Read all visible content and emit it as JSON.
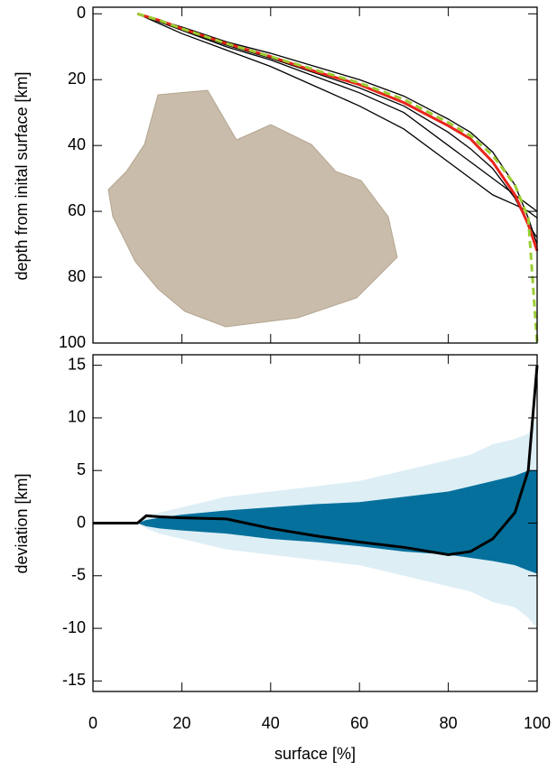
{
  "chart_data": [
    {
      "type": "line",
      "ylabel": "depth from inital surface [km]",
      "ylim": [
        -2,
        100
      ],
      "yticks": [
        0,
        20,
        40,
        60,
        80,
        100
      ],
      "xlim": [
        0,
        100
      ],
      "inverted_y": true,
      "x": [
        10,
        15,
        20,
        30,
        40,
        50,
        60,
        70,
        80,
        85,
        90,
        95,
        98,
        100
      ],
      "series": [
        {
          "color": "#000000",
          "values": [
            0,
            2.5,
            5,
            10,
            14,
            19,
            24,
            30,
            40,
            45,
            50,
            55,
            58,
            60
          ]
        },
        {
          "color": "#000000",
          "values": [
            0,
            3,
            6,
            11,
            16,
            22,
            28,
            35,
            45,
            50,
            55,
            58,
            60,
            62
          ]
        },
        {
          "color": "#000000",
          "values": [
            0,
            2,
            4,
            8.5,
            12,
            16,
            20,
            25,
            32,
            36,
            42,
            52,
            62,
            70
          ]
        },
        {
          "color": "#000000",
          "values": [
            0,
            2.2,
            4.8,
            9.5,
            13.5,
            18,
            22.5,
            28,
            36,
            41,
            47,
            56,
            64,
            68
          ]
        },
        {
          "color": "#e8241c",
          "values": [
            0,
            2,
            4.5,
            9,
            13,
            17.5,
            21.5,
            27,
            34,
            38,
            45,
            55,
            64,
            72
          ]
        },
        {
          "color": "#9acd32",
          "dashed": true,
          "values": [
            0,
            2,
            4.5,
            9,
            13,
            17,
            21,
            26,
            33,
            37,
            43,
            52,
            62,
            100
          ]
        }
      ]
    },
    {
      "type": "band",
      "ylabel": "deviation [km]",
      "xlabel": "surface [%]",
      "xlim": [
        0,
        100
      ],
      "xticks": [
        0,
        20,
        40,
        60,
        80,
        100
      ],
      "ylim": [
        -16,
        16
      ],
      "yticks": [
        15,
        10,
        5,
        0,
        -5,
        -10,
        -15
      ],
      "x": [
        0,
        10,
        12,
        15,
        20,
        30,
        40,
        50,
        60,
        70,
        80,
        85,
        90,
        95,
        98,
        100
      ],
      "bands": [
        {
          "color": "#ddeef5",
          "values": [
            0,
            0,
            0.5,
            1,
            1.5,
            2.5,
            3,
            3.5,
            4,
            5,
            6,
            6.5,
            7.5,
            8,
            8.5,
            10
          ],
          "lower": [
            0,
            0,
            -0.5,
            -1,
            -1.5,
            -2.5,
            -3,
            -3.5,
            -4,
            -5,
            -6,
            -6.5,
            -7.5,
            -8,
            -9,
            -10
          ]
        },
        {
          "color": "#05709c",
          "values": [
            0,
            0,
            0.3,
            0.5,
            0.8,
            1.2,
            1.5,
            1.8,
            2,
            2.5,
            3,
            3.5,
            4,
            4.5,
            5,
            5
          ],
          "lower": [
            0,
            0,
            -0.3,
            -0.5,
            -0.7,
            -1,
            -1.5,
            -1.8,
            -2.2,
            -2.7,
            -3,
            -3.3,
            -3.6,
            -4,
            -4.5,
            -4.8
          ]
        }
      ],
      "series": [
        {
          "color": "#000000",
          "values": [
            0,
            0,
            0.7,
            0.6,
            0.5,
            0.4,
            -0.5,
            -1.2,
            -1.8,
            -2.3,
            -3,
            -2.7,
            -1.5,
            1,
            5,
            15
          ]
        }
      ]
    }
  ]
}
